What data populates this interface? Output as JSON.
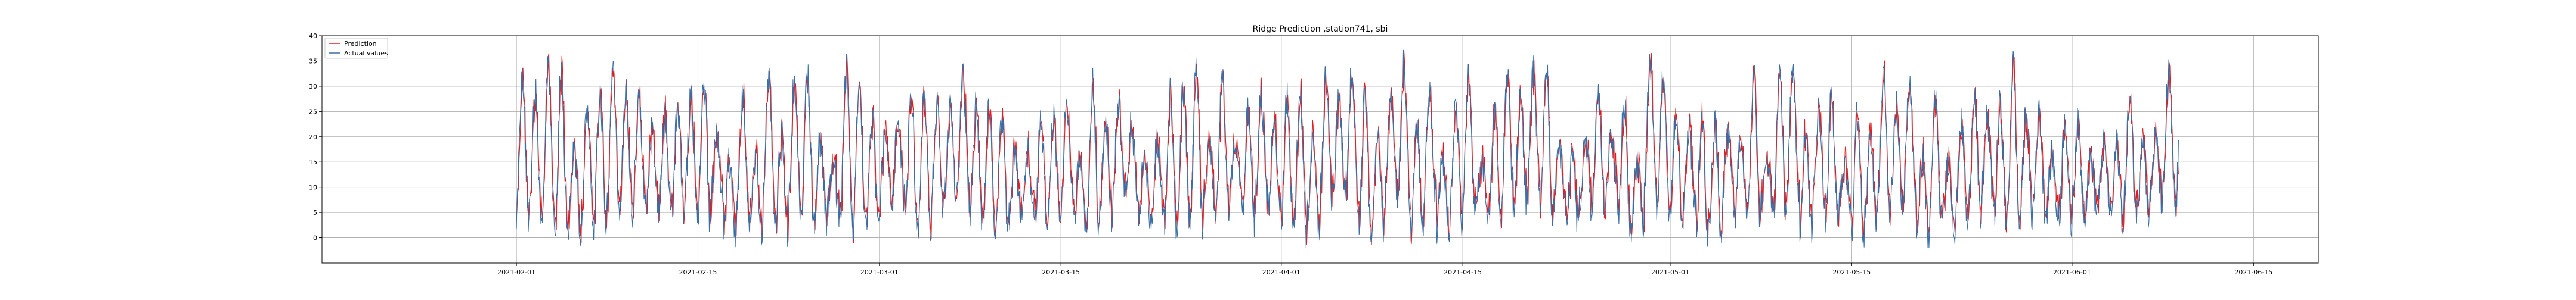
{
  "chart_data": {
    "type": "line",
    "title": "Ridge Prediction ,station741, sbi",
    "xlabel": "",
    "ylabel": "",
    "ylim": [
      -5,
      40
    ],
    "xlim": [
      "2021-01-17",
      "2021-06-20"
    ],
    "x_start": "2021-02-01",
    "x_end": "2021-06-09",
    "yticks": [
      0,
      5,
      10,
      15,
      20,
      25,
      30,
      35,
      40
    ],
    "xticks": [
      "2021-02-01",
      "2021-02-15",
      "2021-03-01",
      "2021-03-15",
      "2021-04-01",
      "2021-04-15",
      "2021-05-01",
      "2021-05-15",
      "2021-06-01",
      "2021-06-15"
    ],
    "grid": true,
    "legend_position": "upper-left",
    "series": [
      {
        "name": "Prediction",
        "color": "#e41a1c"
      },
      {
        "name": "Actual values",
        "color": "#3a6ea5"
      }
    ],
    "approx_range_of_values": [
      -2,
      38
    ]
  }
}
